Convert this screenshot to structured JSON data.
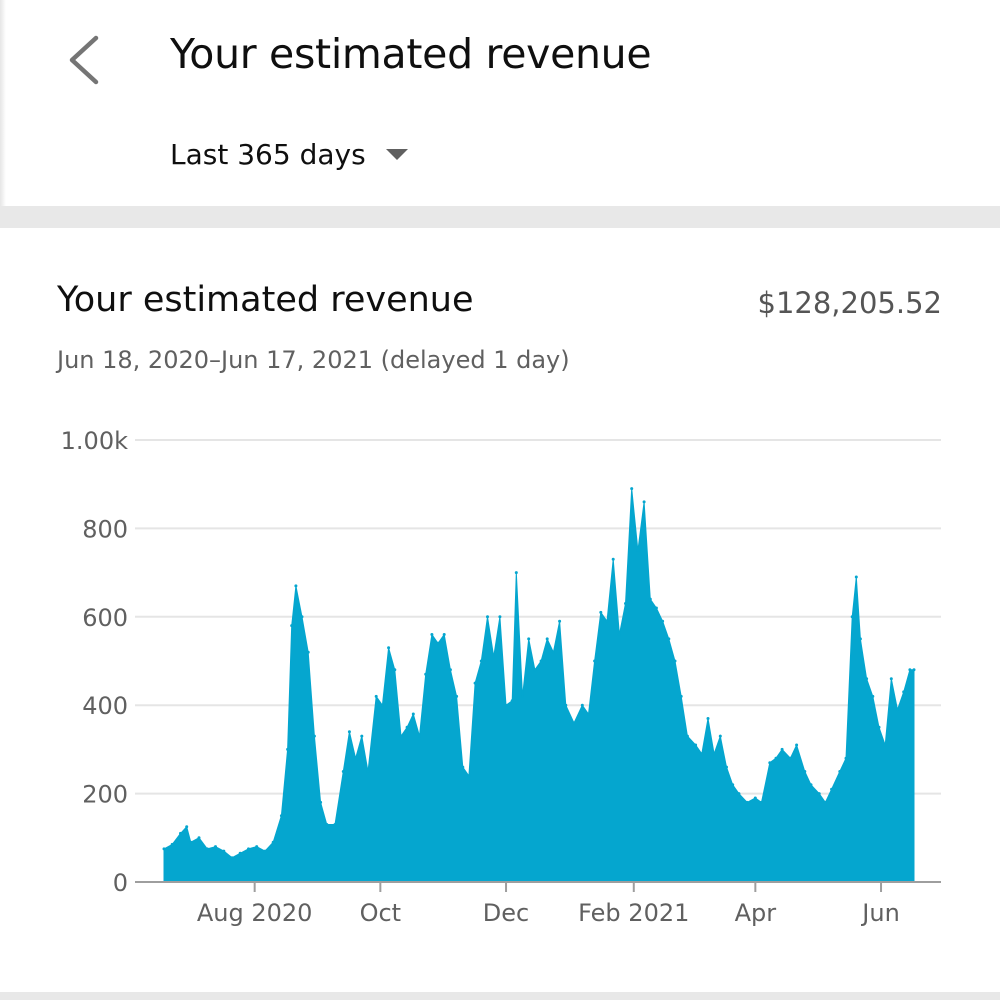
{
  "header": {
    "title": "Your estimated revenue",
    "date_range": "Last 365 days"
  },
  "card": {
    "title": "Your estimated revenue",
    "total": "$128,205.52",
    "subtitle": "Jun 18, 2020–Jun 17, 2021 (delayed 1 day)"
  },
  "colors": {
    "area_fill": "#05a6cf",
    "gridline": "#e5e5e5",
    "axis_line": "#9e9e9e",
    "tick_text": "#606060"
  },
  "chart_data": {
    "type": "area",
    "title": "",
    "xlabel": "",
    "ylabel": "",
    "ylim": [
      0,
      1000
    ],
    "grid": true,
    "y_ticks": [
      {
        "value": 0,
        "label": "0"
      },
      {
        "value": 200,
        "label": "200"
      },
      {
        "value": 400,
        "label": "400"
      },
      {
        "value": 600,
        "label": "600"
      },
      {
        "value": 800,
        "label": "800"
      },
      {
        "value": 1000,
        "label": "1.00k"
      }
    ],
    "x_ticks": [
      {
        "date": "2020-08-01",
        "label": "Aug 2020"
      },
      {
        "date": "2020-10-01",
        "label": "Oct"
      },
      {
        "date": "2020-12-01",
        "label": "Dec"
      },
      {
        "date": "2021-02-01",
        "label": "Feb 2021"
      },
      {
        "date": "2021-04-01",
        "label": "Apr"
      },
      {
        "date": "2021-06-01",
        "label": "Jun"
      }
    ],
    "x_range": [
      "2020-06-18",
      "2021-06-17"
    ],
    "series": [
      {
        "name": "",
        "points": [
          [
            "2020-06-18",
            75
          ],
          [
            "2020-06-22",
            85
          ],
          [
            "2020-06-26",
            110
          ],
          [
            "2020-06-29",
            125
          ],
          [
            "2020-07-01",
            90
          ],
          [
            "2020-07-05",
            100
          ],
          [
            "2020-07-09",
            75
          ],
          [
            "2020-07-13",
            80
          ],
          [
            "2020-07-17",
            70
          ],
          [
            "2020-07-21",
            55
          ],
          [
            "2020-07-25",
            65
          ],
          [
            "2020-07-29",
            75
          ],
          [
            "2020-08-02",
            80
          ],
          [
            "2020-08-06",
            70
          ],
          [
            "2020-08-10",
            90
          ],
          [
            "2020-08-14",
            150
          ],
          [
            "2020-08-17",
            300
          ],
          [
            "2020-08-19",
            580
          ],
          [
            "2020-08-21",
            670
          ],
          [
            "2020-08-24",
            600
          ],
          [
            "2020-08-27",
            520
          ],
          [
            "2020-08-30",
            330
          ],
          [
            "2020-09-02",
            180
          ],
          [
            "2020-09-05",
            130
          ],
          [
            "2020-09-09",
            130
          ],
          [
            "2020-09-13",
            250
          ],
          [
            "2020-09-16",
            340
          ],
          [
            "2020-09-19",
            280
          ],
          [
            "2020-09-22",
            330
          ],
          [
            "2020-09-25",
            250
          ],
          [
            "2020-09-29",
            420
          ],
          [
            "2020-10-02",
            400
          ],
          [
            "2020-10-05",
            530
          ],
          [
            "2020-10-08",
            480
          ],
          [
            "2020-10-11",
            330
          ],
          [
            "2020-10-14",
            350
          ],
          [
            "2020-10-17",
            380
          ],
          [
            "2020-10-20",
            330
          ],
          [
            "2020-10-23",
            470
          ],
          [
            "2020-10-26",
            560
          ],
          [
            "2020-10-29",
            540
          ],
          [
            "2020-11-01",
            560
          ],
          [
            "2020-11-04",
            480
          ],
          [
            "2020-11-07",
            420
          ],
          [
            "2020-11-10",
            260
          ],
          [
            "2020-11-13",
            240
          ],
          [
            "2020-11-16",
            450
          ],
          [
            "2020-11-19",
            500
          ],
          [
            "2020-11-22",
            600
          ],
          [
            "2020-11-25",
            510
          ],
          [
            "2020-11-28",
            600
          ],
          [
            "2020-12-01",
            400
          ],
          [
            "2020-12-04",
            410
          ],
          [
            "2020-12-06",
            700
          ],
          [
            "2020-12-09",
            420
          ],
          [
            "2020-12-12",
            550
          ],
          [
            "2020-12-15",
            480
          ],
          [
            "2020-12-18",
            500
          ],
          [
            "2020-12-21",
            550
          ],
          [
            "2020-12-24",
            520
          ],
          [
            "2020-12-27",
            590
          ],
          [
            "2020-12-30",
            400
          ],
          [
            "2021-01-03",
            360
          ],
          [
            "2021-01-07",
            400
          ],
          [
            "2021-01-10",
            380
          ],
          [
            "2021-01-13",
            500
          ],
          [
            "2021-01-16",
            610
          ],
          [
            "2021-01-19",
            590
          ],
          [
            "2021-01-22",
            730
          ],
          [
            "2021-01-25",
            560
          ],
          [
            "2021-01-28",
            630
          ],
          [
            "2021-01-31",
            890
          ],
          [
            "2021-02-03",
            750
          ],
          [
            "2021-02-06",
            860
          ],
          [
            "2021-02-09",
            640
          ],
          [
            "2021-02-12",
            620
          ],
          [
            "2021-02-15",
            590
          ],
          [
            "2021-02-18",
            550
          ],
          [
            "2021-02-21",
            500
          ],
          [
            "2021-02-24",
            420
          ],
          [
            "2021-02-27",
            330
          ],
          [
            "2021-03-03",
            310
          ],
          [
            "2021-03-06",
            290
          ],
          [
            "2021-03-09",
            370
          ],
          [
            "2021-03-12",
            290
          ],
          [
            "2021-03-15",
            330
          ],
          [
            "2021-03-18",
            260
          ],
          [
            "2021-03-21",
            220
          ],
          [
            "2021-03-24",
            200
          ],
          [
            "2021-03-28",
            180
          ],
          [
            "2021-04-01",
            190
          ],
          [
            "2021-04-04",
            180
          ],
          [
            "2021-04-08",
            270
          ],
          [
            "2021-04-11",
            280
          ],
          [
            "2021-04-14",
            300
          ],
          [
            "2021-04-18",
            280
          ],
          [
            "2021-04-21",
            310
          ],
          [
            "2021-04-25",
            250
          ],
          [
            "2021-04-28",
            220
          ],
          [
            "2021-05-02",
            200
          ],
          [
            "2021-05-05",
            180
          ],
          [
            "2021-05-08",
            210
          ],
          [
            "2021-05-12",
            250
          ],
          [
            "2021-05-15",
            280
          ],
          [
            "2021-05-18",
            600
          ],
          [
            "2021-05-20",
            690
          ],
          [
            "2021-05-22",
            550
          ],
          [
            "2021-05-25",
            460
          ],
          [
            "2021-05-28",
            420
          ],
          [
            "2021-05-31",
            350
          ],
          [
            "2021-06-03",
            310
          ],
          [
            "2021-06-06",
            460
          ],
          [
            "2021-06-09",
            390
          ],
          [
            "2021-06-12",
            430
          ],
          [
            "2021-06-15",
            480
          ],
          [
            "2021-06-17",
            480
          ]
        ]
      }
    ]
  }
}
